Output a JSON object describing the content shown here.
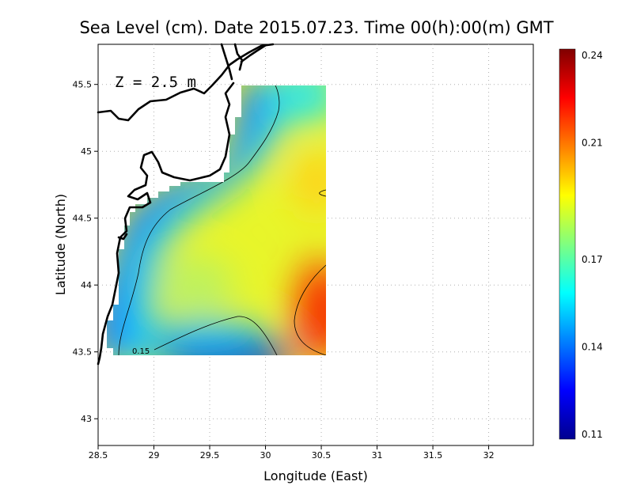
{
  "title": "Sea Level (cm). Date 2015.07.23. Time 00(h):00(m) GMT",
  "depth_label": "Z = 2.5 m",
  "contour_label": "0.15",
  "axes": {
    "xlabel": "Longitude (East)",
    "ylabel": "Latitude (North)",
    "xlim": [
      28.5,
      32.4
    ],
    "ylim": [
      42.8,
      45.8
    ],
    "x_ticks": [
      "28.5",
      "29",
      "29.5",
      "30",
      "30.5",
      "31",
      "31.5",
      "32"
    ],
    "x_tick_values": [
      28.5,
      29,
      29.5,
      30,
      30.5,
      31,
      31.5,
      32
    ],
    "y_ticks": [
      "43",
      "43.5",
      "44",
      "44.5",
      "45",
      "45.5"
    ],
    "y_tick_values": [
      43,
      43.5,
      44,
      44.5,
      45,
      45.5
    ]
  },
  "colorbar": {
    "min": 0.11,
    "max": 0.24,
    "ticks": [
      "0.24",
      "0.21",
      "0.17",
      "0.14",
      "0.11"
    ],
    "tick_values": [
      0.24,
      0.21,
      0.17,
      0.14,
      0.11
    ],
    "colormap": "jet"
  },
  "chart_data": {
    "type": "heatmap",
    "variable": "Sea Level (cm)",
    "depth": "Z = 2.5 m",
    "field_extent": {
      "lon_max": 30.5,
      "lat_min": 43.5,
      "lat_max": 45.5
    },
    "value_range": [
      0.11,
      0.24
    ],
    "contour_levels": [
      0.15,
      0.2
    ],
    "features": [
      {
        "lon": 30.45,
        "lat": 43.75,
        "value": 0.23
      },
      {
        "lon": 29.65,
        "lat": 43.55,
        "value": 0.115
      },
      {
        "lon": 30.4,
        "lat": 44.75,
        "value": 0.2
      }
    ]
  }
}
